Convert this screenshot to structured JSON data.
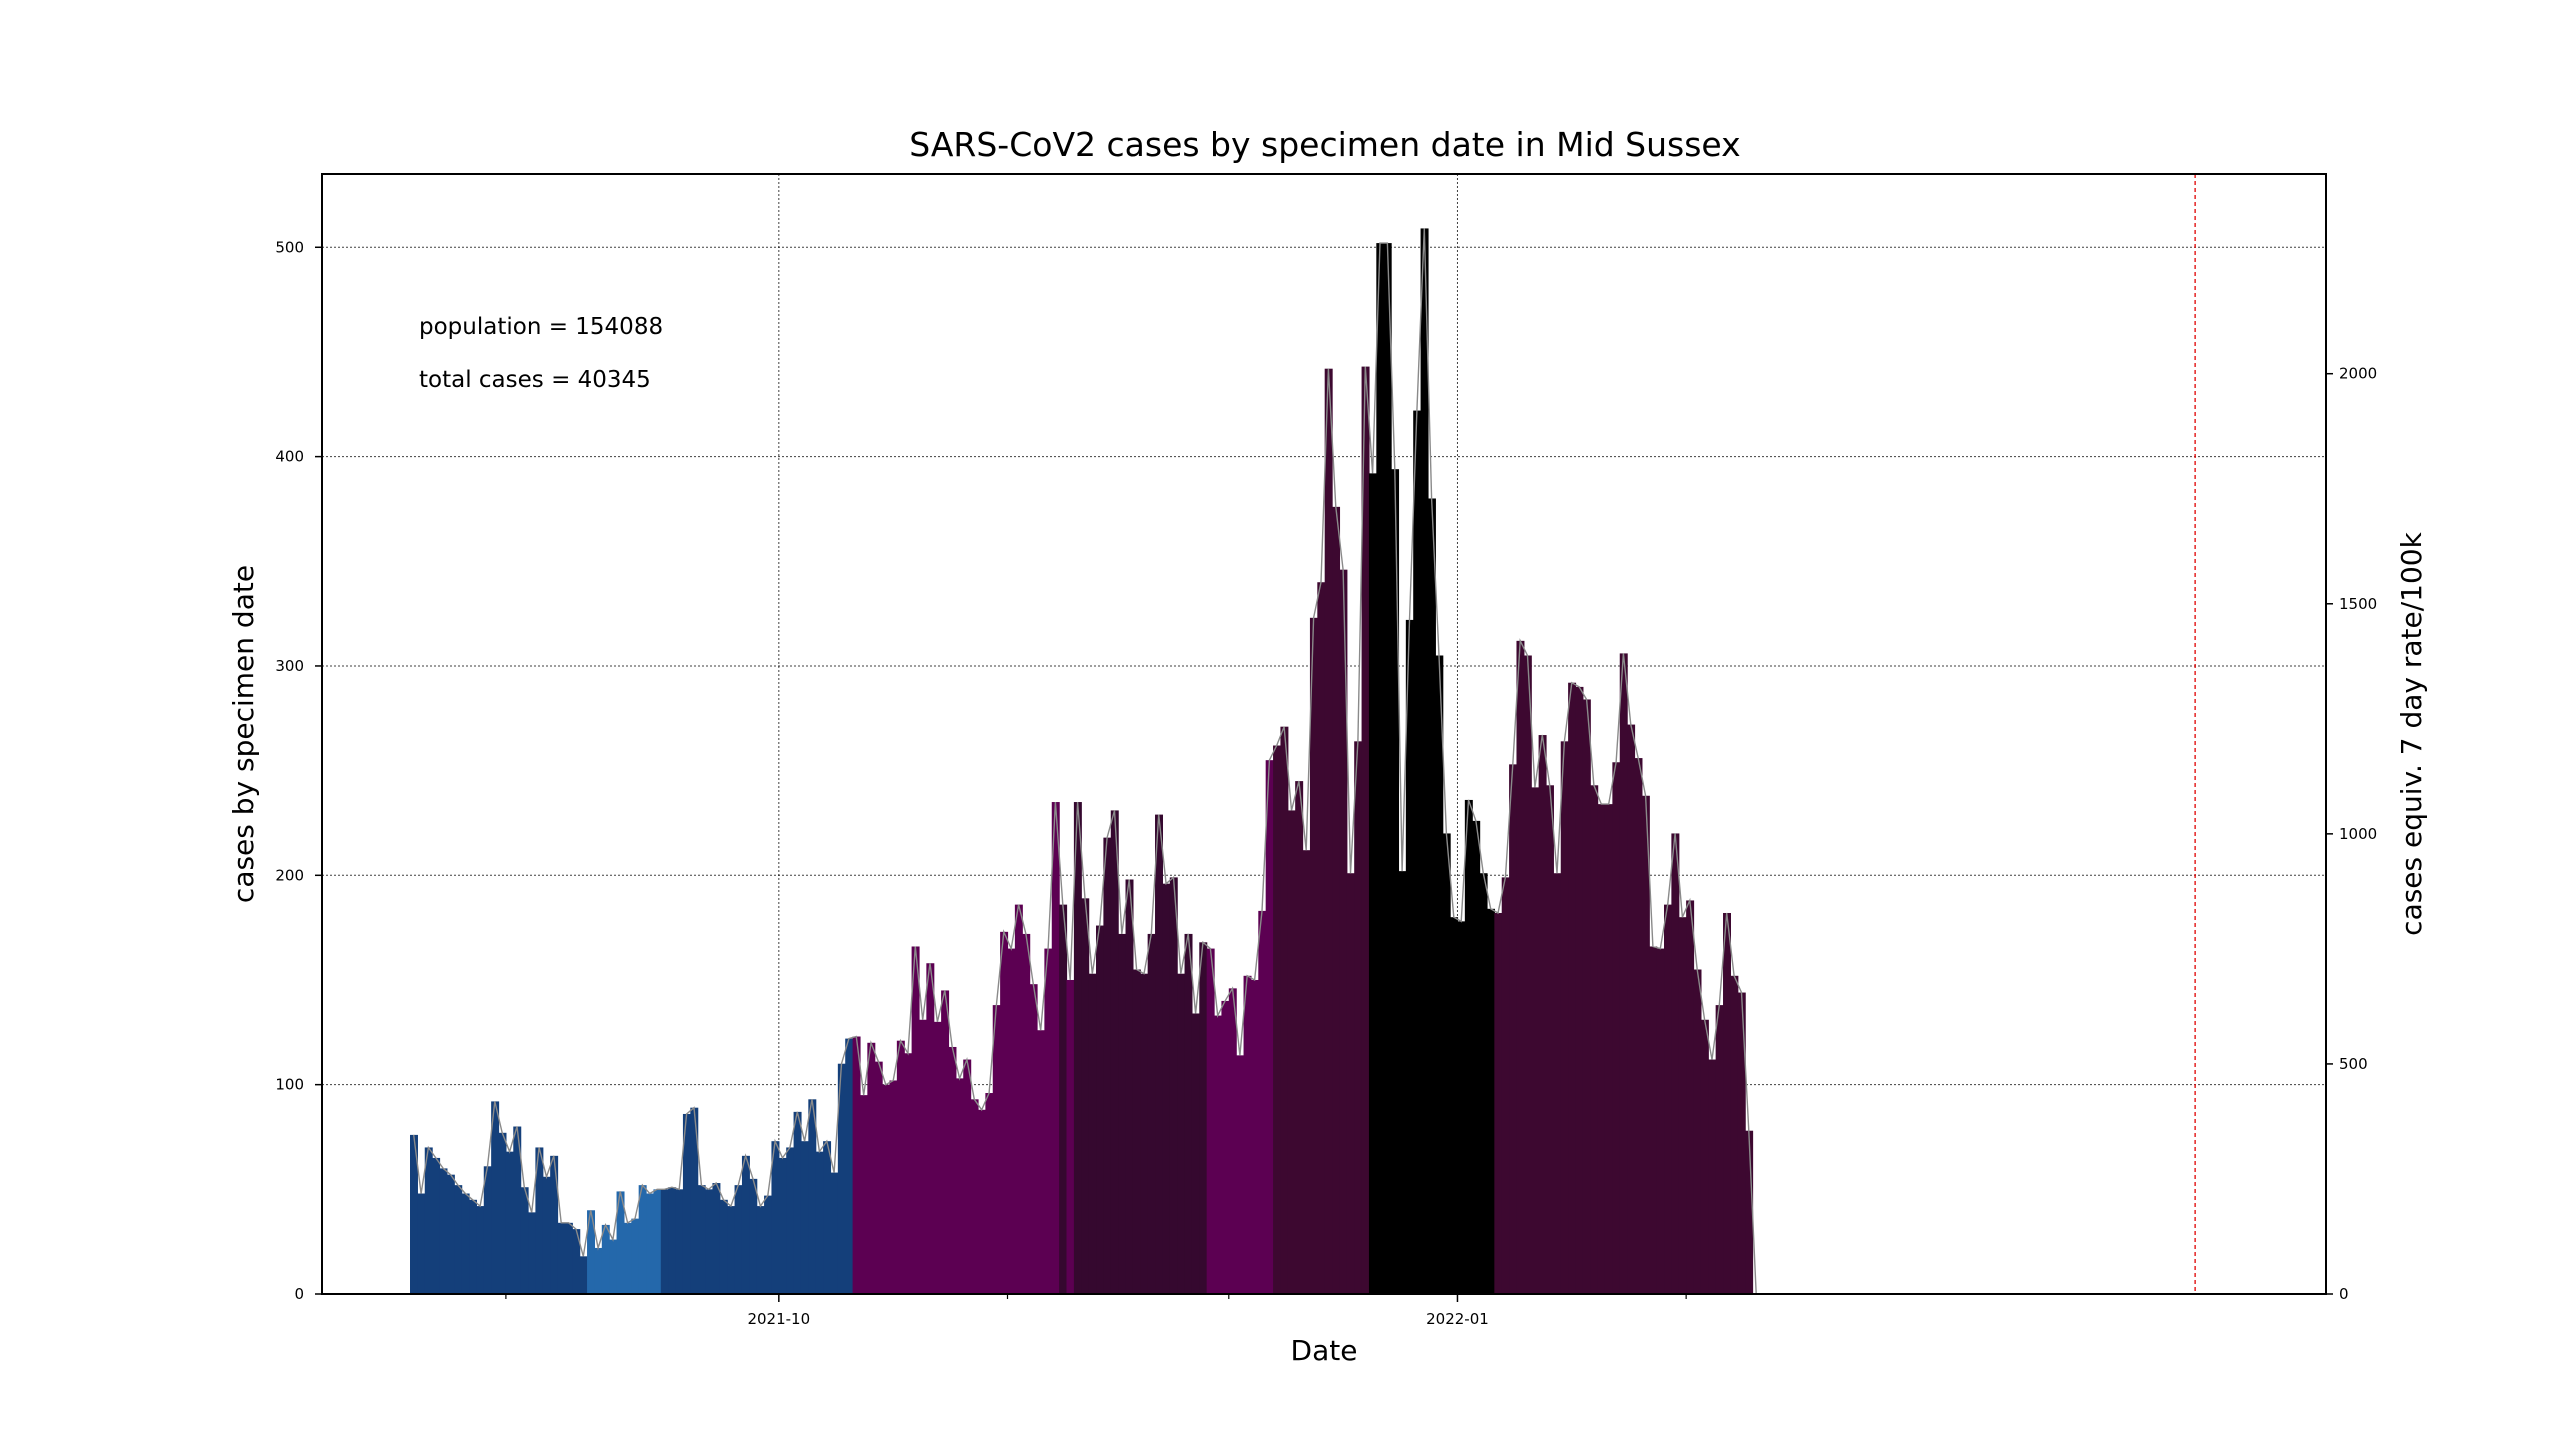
{
  "chart_data": {
    "type": "bar",
    "title": "SARS-CoV2 cases by specimen date in Mid Sussex",
    "xlabel": "Date",
    "ylabel": "cases by specimen date",
    "ylabel_right": "cases equiv. 7 day rate/100k",
    "annotations": [
      "population = 154088",
      "total cases = 40345"
    ],
    "start_date": "2021-08-12",
    "end_date_exclusive": "2022-04-16",
    "ylim": [
      0,
      535
    ],
    "ylim_right": [
      0,
      2434
    ],
    "yticks": [
      0,
      100,
      200,
      300,
      400,
      500
    ],
    "yticks_right": [
      0,
      500,
      1000,
      1500,
      2000
    ],
    "xticks": [
      {
        "date": "2021-10-01",
        "label": "2021-10"
      },
      {
        "date": "2022-01-01",
        "label": "2022-01"
      }
    ],
    "minor_xticks": [
      "2021-08-25",
      "2021-11-01",
      "2021-12-01",
      "2022-02-01"
    ],
    "grid": true,
    "cutoff_line_date": "2022-04-11",
    "smoothed_line": true,
    "color_bands": [
      {
        "from": "2021-08-12",
        "to": "2021-09-05",
        "color": "#143f7a"
      },
      {
        "from": "2021-09-05",
        "to": "2021-09-15",
        "color": "#2468ab"
      },
      {
        "from": "2021-09-15",
        "to": "2021-10-11",
        "color": "#143f7a"
      },
      {
        "from": "2021-10-11",
        "to": "2021-11-08",
        "color": "#5c0052"
      },
      {
        "from": "2021-11-08",
        "to": "2021-11-09",
        "color": "#35082f"
      },
      {
        "from": "2021-11-09",
        "to": "2021-11-10",
        "color": "#5c0052"
      },
      {
        "from": "2021-11-10",
        "to": "2021-11-28",
        "color": "#35082f"
      },
      {
        "from": "2021-11-28",
        "to": "2021-12-07",
        "color": "#5c0052"
      },
      {
        "from": "2021-12-07",
        "to": "2021-12-20",
        "color": "#3d0830"
      },
      {
        "from": "2021-12-20",
        "to": "2021-12-30",
        "color": "#000000"
      },
      {
        "from": "2021-12-30",
        "to": "2022-01-02",
        "color": "#000000"
      },
      {
        "from": "2022-01-02",
        "to": "2022-01-06",
        "color": "#000000"
      },
      {
        "from": "2022-01-06",
        "to": "2022-04-09",
        "color": "#3d0830"
      },
      {
        "from": "2022-04-09",
        "to": "2022-04-11",
        "color": "#5c0052"
      },
      {
        "from": "2022-04-11",
        "to": "2022-04-16",
        "color": "#b07fa9"
      }
    ],
    "values": [
      76,
      48,
      70,
      65,
      60,
      57,
      52,
      48,
      45,
      42,
      61,
      92,
      77,
      68,
      80,
      51,
      39,
      70,
      56,
      66,
      34,
      34,
      31,
      18,
      40,
      22,
      33,
      26,
      49,
      34,
      36,
      52,
      48,
      50,
      50,
      51,
      50,
      86,
      89,
      52,
      50,
      53,
      45,
      42,
      52,
      66,
      55,
      42,
      47,
      73,
      65,
      70,
      87,
      73,
      93,
      68,
      73,
      58,
      110,
      122,
      123,
      95,
      120,
      111,
      100,
      102,
      121,
      115,
      166,
      131,
      158,
      130,
      145,
      118,
      103,
      112,
      93,
      88,
      96,
      138,
      173,
      165,
      186,
      172,
      148,
      126,
      165,
      235,
      186,
      150,
      235,
      189,
      153,
      176,
      218,
      231,
      172,
      198,
      155,
      153,
      172,
      229,
      196,
      199,
      153,
      172,
      134,
      168,
      165,
      133,
      140,
      146,
      114,
      152,
      150,
      183,
      255,
      262,
      271,
      231,
      245,
      212,
      323,
      340,
      442,
      376,
      346,
      201,
      264,
      443,
      392,
      502,
      502,
      394,
      202,
      322,
      422,
      509,
      380,
      305,
      220,
      180,
      178,
      236,
      226,
      201,
      184,
      182,
      199,
      253,
      312,
      305,
      242,
      267,
      243,
      201,
      264,
      292,
      290,
      284,
      243,
      234,
      234,
      254,
      306,
      272,
      256,
      238,
      166,
      165,
      186,
      220,
      180,
      188,
      155,
      131,
      112,
      138,
      182,
      152,
      144,
      78,
      0
    ]
  }
}
